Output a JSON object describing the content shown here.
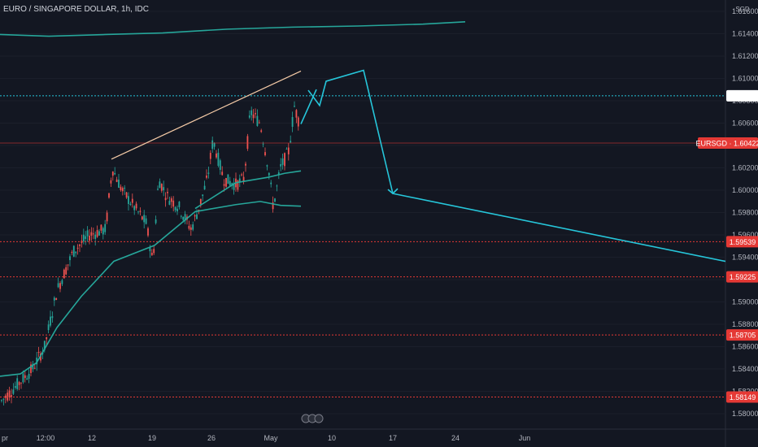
{
  "header": {
    "title": "EURO / SINGAPORE DOLLAR, 1h, IDC",
    "currency": "SGD"
  },
  "colors": {
    "background": "#131722",
    "up_candle": "#26a69a",
    "down_candle": "#ef5350",
    "moving_average": "#26a69a",
    "projection": "#26c6da",
    "trendline": "#f5cba7",
    "support_line": "#e53935",
    "resistance_dotted": "#26c6da",
    "axis_text": "#b2b5be"
  },
  "chart_data": {
    "type": "candlestick",
    "symbol": "EURSGD",
    "x_axis_labels": [
      "pr",
      "12:00",
      "12",
      "19",
      "26",
      "May",
      "10",
      "17",
      "24",
      "Jun"
    ],
    "y_axis_ticks": [
      "1.61600",
      "1.61400",
      "1.61200",
      "1.61000",
      "1.60800",
      "1.60600",
      "1.60400",
      "1.60200",
      "1.60000",
      "1.59800",
      "1.59600",
      "1.59400",
      "1.59200",
      "1.59000",
      "1.58800",
      "1.58600",
      "1.58400",
      "1.58200",
      "1.58000"
    ],
    "ylim": [
      1.5787,
      1.6167
    ],
    "price_tags": [
      {
        "label": "1.60845",
        "value": 1.60845,
        "style": "highlight"
      },
      {
        "label": "EURSGD · 1.60422",
        "value": 1.60422,
        "style": "current"
      },
      {
        "label": "1.59539",
        "value": 1.59539,
        "style": "level"
      },
      {
        "label": "1.59225",
        "value": 1.59225,
        "style": "level"
      },
      {
        "label": "1.58705",
        "value": 1.58705,
        "style": "level"
      },
      {
        "label": "1.58149",
        "value": 1.58149,
        "style": "level"
      }
    ],
    "horizontal_levels": [
      {
        "value": 1.60845,
        "style": "dotted",
        "color": "#26c6da"
      },
      {
        "value": 1.60422,
        "style": "solid",
        "color": "#e53935"
      },
      {
        "value": 1.59539,
        "style": "dotted",
        "color": "#e53935"
      },
      {
        "value": 1.59225,
        "style": "dotted",
        "color": "#e53935"
      },
      {
        "value": 1.58705,
        "style": "dotted",
        "color": "#e53935"
      },
      {
        "value": 1.58149,
        "style": "dotted",
        "color": "#e53935"
      }
    ],
    "moving_averages": [
      {
        "points": [
          [
            0,
            1.61393
          ],
          [
            60,
            1.61378
          ],
          [
            130,
            1.61393
          ],
          [
            200,
            1.61407
          ],
          [
            280,
            1.61441
          ],
          [
            360,
            1.61459
          ],
          [
            440,
            1.61469
          ],
          [
            520,
            1.61486
          ],
          [
            572,
            1.61507
          ]
        ]
      },
      {
        "points": [
          [
            0,
            1.58335
          ],
          [
            25,
            1.58356
          ],
          [
            45,
            1.58456
          ],
          [
            70,
            1.5877
          ],
          [
            100,
            1.5905
          ],
          [
            140,
            1.59364
          ],
          [
            190,
            1.59506
          ],
          [
            240,
            1.59808
          ],
          [
            290,
            1.59871
          ],
          [
            320,
            1.59899
          ],
          [
            345,
            1.59864
          ],
          [
            370,
            1.59857
          ]
        ]
      },
      {
        "points": [
          [
            240,
            1.59836
          ],
          [
            290,
            1.60067
          ],
          [
            330,
            1.60116
          ],
          [
            350,
            1.60151
          ],
          [
            370,
            1.60172
          ]
        ]
      }
    ],
    "trendline": {
      "points": [
        [
          137,
          1.60278
        ],
        [
          370,
          1.61066
        ]
      ]
    },
    "projection_path": {
      "points": [
        [
          370,
          1.60592
        ],
        [
          385,
          1.60836
        ],
        [
          393,
          1.60758
        ],
        [
          401,
          1.60975
        ],
        [
          447,
          1.61073
        ],
        [
          483,
          1.5997
        ],
        [
          892,
          1.59363
        ]
      ]
    },
    "candles": []
  }
}
